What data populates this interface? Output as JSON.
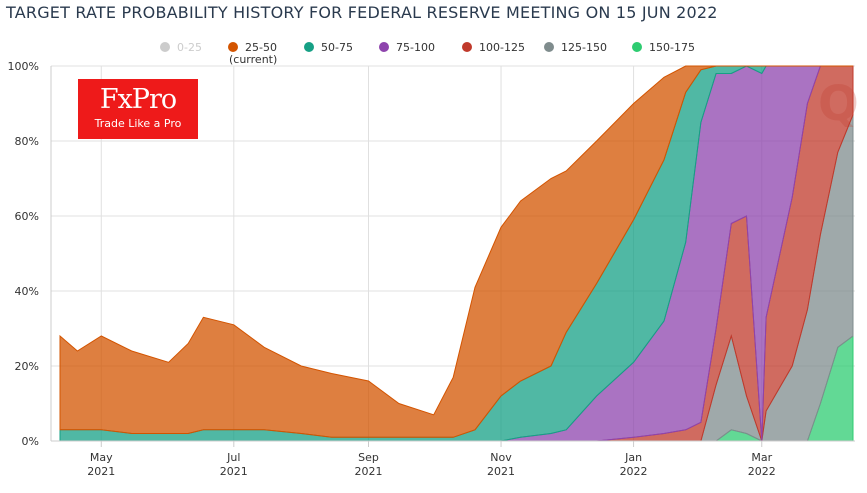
{
  "title": "TARGET RATE PROBABILITY HISTORY FOR FEDERAL RESERVE MEETING ON 15 JUN 2022",
  "logo": {
    "name": "FxPro",
    "tagline": "Trade Like a Pro"
  },
  "watermark": "Q",
  "chart_data": {
    "type": "area",
    "stacked": true,
    "title": "TARGET RATE PROBABILITY HISTORY FOR FEDERAL RESERVE MEETING ON 15 JUN 2022",
    "ylim": [
      0,
      100
    ],
    "yticks": [
      "0%",
      "20%",
      "40%",
      "60%",
      "80%",
      "100%"
    ],
    "xticks": [
      {
        "date": "2021-05-01",
        "month": "May",
        "year": "2021"
      },
      {
        "date": "2021-07-01",
        "month": "Jul",
        "year": "2021"
      },
      {
        "date": "2021-09-01",
        "month": "Sep",
        "year": "2021"
      },
      {
        "date": "2021-11-01",
        "month": "Nov",
        "year": "2021"
      },
      {
        "date": "2022-01-01",
        "month": "Jan",
        "year": "2022"
      },
      {
        "date": "2022-03-01",
        "month": "Mar",
        "year": "2022"
      }
    ],
    "xrange": [
      "2021-04-12",
      "2022-04-12"
    ],
    "legend_position": "top",
    "legend": [
      {
        "name": "0-25",
        "color": "#cccccc",
        "enabled": false
      },
      {
        "name": "25-50",
        "note": "(current)",
        "color": "#d35400",
        "enabled": true
      },
      {
        "name": "50-75",
        "color": "#16a085",
        "enabled": true
      },
      {
        "name": "75-100",
        "color": "#8e44ad",
        "enabled": true
      },
      {
        "name": "100-125",
        "color": "#c0392b",
        "enabled": true
      },
      {
        "name": "125-150",
        "color": "#7f8c8d",
        "enabled": true
      },
      {
        "name": "150-175",
        "color": "#2ecc71",
        "enabled": true
      }
    ],
    "stack_order_bottom_to_top": [
      "150-175",
      "125-150",
      "100-125",
      "75-100",
      "50-75",
      "25-50"
    ],
    "x": [
      "2021-04-12",
      "2021-04-20",
      "2021-05-01",
      "2021-05-15",
      "2021-06-01",
      "2021-06-10",
      "2021-06-17",
      "2021-07-01",
      "2021-07-15",
      "2021-08-01",
      "2021-08-15",
      "2021-09-01",
      "2021-09-15",
      "2021-10-01",
      "2021-10-10",
      "2021-10-20",
      "2021-11-01",
      "2021-11-10",
      "2021-11-24",
      "2021-12-01",
      "2021-12-15",
      "2022-01-01",
      "2022-01-15",
      "2022-01-25",
      "2022-02-01",
      "2022-02-08",
      "2022-02-15",
      "2022-02-22",
      "2022-03-01",
      "2022-03-03",
      "2022-03-15",
      "2022-03-22",
      "2022-03-28",
      "2022-04-05",
      "2022-04-12"
    ],
    "series": [
      {
        "name": "150-175",
        "values": [
          0,
          0,
          0,
          0,
          0,
          0,
          0,
          0,
          0,
          0,
          0,
          0,
          0,
          0,
          0,
          0,
          0,
          0,
          0,
          0,
          0,
          0,
          0,
          0,
          0,
          0,
          3,
          2,
          0,
          0,
          0,
          0,
          10,
          25,
          28
        ]
      },
      {
        "name": "125-150",
        "values": [
          0,
          0,
          0,
          0,
          0,
          0,
          0,
          0,
          0,
          0,
          0,
          0,
          0,
          0,
          0,
          0,
          0,
          0,
          0,
          0,
          0,
          0,
          0,
          0,
          0,
          15,
          25,
          10,
          0,
          8,
          20,
          35,
          45,
          52,
          59
        ]
      },
      {
        "name": "100-125",
        "values": [
          0,
          0,
          0,
          0,
          0,
          0,
          0,
          0,
          0,
          0,
          0,
          0,
          0,
          0,
          0,
          0,
          0,
          0,
          0,
          0,
          0,
          1,
          2,
          3,
          5,
          15,
          30,
          48,
          0,
          25,
          45,
          55,
          45,
          23,
          13
        ]
      },
      {
        "name": "75-100",
        "values": [
          0,
          0,
          0,
          0,
          0,
          0,
          0,
          0,
          0,
          0,
          0,
          0,
          0,
          0,
          0,
          0,
          0,
          1,
          2,
          3,
          12,
          20,
          30,
          50,
          80,
          68,
          40,
          40,
          98,
          67,
          35,
          10,
          0,
          0,
          0
        ]
      },
      {
        "name": "50-75",
        "values": [
          3,
          3,
          3,
          2,
          2,
          2,
          3,
          3,
          3,
          2,
          1,
          1,
          1,
          1,
          1,
          3,
          12,
          15,
          18,
          26,
          30,
          38,
          43,
          40,
          14,
          2,
          2,
          0,
          2,
          0,
          0,
          0,
          0,
          0,
          0
        ]
      },
      {
        "name": "25-50",
        "values": [
          25,
          21,
          25,
          22,
          19,
          24,
          30,
          28,
          22,
          18,
          17,
          15,
          9,
          6,
          16,
          38,
          45,
          48,
          50,
          43,
          38,
          31,
          22,
          7,
          1,
          0,
          0,
          0,
          0,
          0,
          0,
          0,
          0,
          0,
          0
        ]
      }
    ]
  }
}
